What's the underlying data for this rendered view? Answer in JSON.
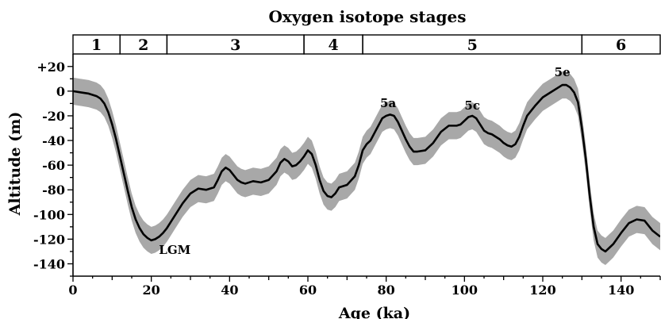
{
  "chart_data": {
    "type": "line",
    "title": "Oxygen isotope stages",
    "xlabel": "Age (ka)",
    "ylabel": "Altitude (m)",
    "xlim": [
      0,
      150
    ],
    "ylim": [
      -150,
      25
    ],
    "x_ticks": [
      0,
      20,
      40,
      60,
      80,
      100,
      120,
      140
    ],
    "x_tick_labels": [
      "0",
      "20",
      "40",
      "60",
      "80",
      "100",
      "120",
      "140"
    ],
    "y_ticks": [
      20,
      0,
      -20,
      -40,
      -60,
      -80,
      -100,
      -120,
      -140
    ],
    "y_tick_labels": [
      "+20",
      "0",
      "-20",
      "-40",
      "-60",
      "-80",
      "-100",
      "-120",
      "-140"
    ],
    "stages": [
      {
        "label": "1",
        "start": 0,
        "end": 12
      },
      {
        "label": "2",
        "start": 12,
        "end": 24
      },
      {
        "label": "3",
        "start": 24,
        "end": 59
      },
      {
        "label": "4",
        "start": 59,
        "end": 74
      },
      {
        "label": "5",
        "start": 74,
        "end": 130
      },
      {
        "label": "6",
        "start": 130,
        "end": 150
      }
    ],
    "series": [
      {
        "x": [
          0,
          2,
          4,
          6,
          7,
          8,
          9,
          10,
          11,
          12,
          13,
          14,
          15,
          16,
          17,
          18,
          19,
          20,
          21,
          22,
          23,
          24,
          25,
          26,
          27,
          28,
          29,
          30,
          32,
          34,
          36,
          37,
          38,
          39,
          40,
          41,
          42,
          43,
          44,
          46,
          48,
          50,
          52,
          53,
          54,
          55,
          56,
          57,
          58,
          59,
          60,
          61,
          62,
          63,
          64,
          65,
          66,
          67,
          68,
          70,
          72,
          73,
          74,
          75,
          76,
          77,
          78,
          79,
          80,
          81,
          82,
          83,
          84,
          85,
          86,
          87,
          88,
          90,
          92,
          94,
          96,
          98,
          99,
          100,
          101,
          102,
          103,
          104,
          105,
          106,
          107,
          108,
          109,
          110,
          111,
          112,
          113,
          114,
          115,
          116,
          118,
          120,
          122,
          124,
          125,
          126,
          127,
          128,
          129,
          130,
          131,
          132,
          133,
          134,
          135,
          136,
          137,
          138,
          140,
          142,
          144,
          146,
          148,
          150
        ],
        "values": [
          0,
          -1,
          -2,
          -4,
          -6,
          -10,
          -17,
          -27,
          -39,
          -53,
          -67,
          -81,
          -94,
          -104,
          -111,
          -116,
          -119,
          -121,
          -120,
          -118,
          -115,
          -111,
          -106,
          -101,
          -96,
          -91,
          -87,
          -83,
          -79,
          -80,
          -78,
          -72,
          -65,
          -62,
          -64,
          -68,
          -72,
          -74,
          -75,
          -73,
          -74,
          -72,
          -65,
          -58,
          -55,
          -57,
          -61,
          -60,
          -57,
          -53,
          -48,
          -51,
          -60,
          -72,
          -81,
          -85,
          -86,
          -83,
          -78,
          -76,
          -69,
          -60,
          -48,
          -43,
          -40,
          -34,
          -28,
          -22,
          -20,
          -19,
          -20,
          -25,
          -32,
          -39,
          -45,
          -49,
          -49,
          -48,
          -42,
          -33,
          -28,
          -28,
          -27,
          -24,
          -21,
          -20,
          -22,
          -27,
          -32,
          -34,
          -35,
          -37,
          -39,
          -42,
          -44,
          -45,
          -43,
          -37,
          -28,
          -20,
          -12,
          -5,
          -1,
          3,
          5,
          5,
          3,
          -1,
          -9,
          -30,
          -55,
          -85,
          -110,
          -124,
          -128,
          -130,
          -127,
          -124,
          -115,
          -107,
          -104,
          -105,
          -113,
          -118
        ]
      }
    ],
    "uncertainty_halfwidth": 11,
    "annotations": [
      {
        "text": "LGM",
        "x": 26,
        "y": -132
      },
      {
        "text": "5a",
        "x": 80.5,
        "y": -13
      },
      {
        "text": "5c",
        "x": 102,
        "y": -15
      },
      {
        "text": "5e",
        "x": 125,
        "y": 12
      }
    ],
    "colors": {
      "line": "#000000",
      "band": "#a8a8a8"
    }
  }
}
